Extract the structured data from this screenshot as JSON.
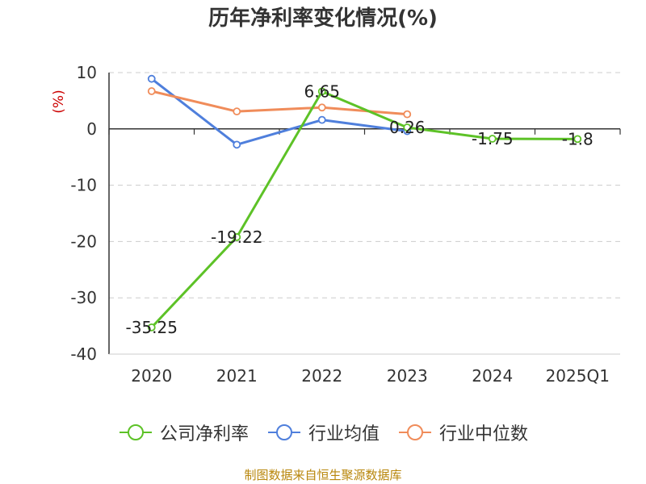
{
  "chart_data": {
    "type": "line",
    "title": "历年净利率变化情况(%)",
    "ylabel": "(%)",
    "categories": [
      "2020",
      "2021",
      "2022",
      "2023",
      "2024",
      "2025Q1"
    ],
    "ylim": [
      -40,
      10
    ],
    "yticks": [
      10,
      0,
      -10,
      -20,
      -30,
      -40
    ],
    "grid": true,
    "legend_position": "bottom",
    "series": [
      {
        "name": "公司净利率",
        "color": "#5dc227",
        "values": [
          -35.25,
          -19.22,
          6.65,
          0.26,
          -1.75,
          -1.8
        ],
        "labels": true
      },
      {
        "name": "行业均值",
        "color": "#4f7fdc",
        "values": [
          8.9,
          -2.8,
          1.6,
          -0.4,
          null,
          null
        ],
        "labels": false
      },
      {
        "name": "行业中位数",
        "color": "#f08c5a",
        "values": [
          6.7,
          3.1,
          3.8,
          2.6,
          null,
          null
        ],
        "labels": false
      }
    ]
  },
  "footer": "制图数据来自恒生聚源数据库"
}
